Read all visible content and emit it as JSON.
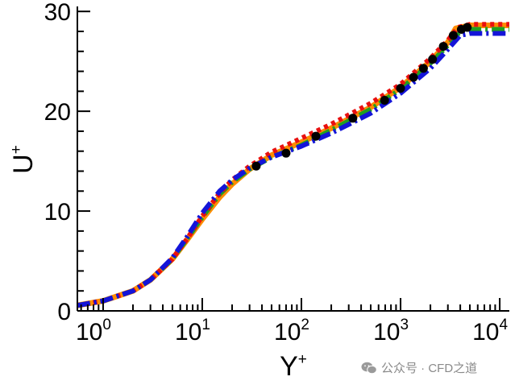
{
  "chart_data": {
    "type": "line",
    "title": "",
    "xlabel": {
      "base": "Y",
      "sup": "+"
    },
    "ylabel": {
      "base": "U",
      "sup": "+"
    },
    "xscale": "log",
    "xlim": [
      0.55,
      12500
    ],
    "ylim": [
      0,
      30.5
    ],
    "xticks": [
      {
        "base": "10",
        "exp": "0",
        "value": 1
      },
      {
        "base": "10",
        "exp": "1",
        "value": 10
      },
      {
        "base": "10",
        "exp": "2",
        "value": 100
      },
      {
        "base": "10",
        "exp": "3",
        "value": 1000
      },
      {
        "base": "10",
        "exp": "4",
        "value": 10000
      }
    ],
    "yticks": [
      {
        "label": "0",
        "value": 0
      },
      {
        "label": "10",
        "value": 10
      },
      {
        "label": "20",
        "value": 20
      },
      {
        "label": "30",
        "value": 30
      }
    ],
    "grid": false,
    "legend": "none",
    "series": [
      {
        "color": "#ff8c00",
        "style": "solid",
        "x": [
          0.55,
          1,
          2,
          3,
          5,
          7,
          10,
          15,
          20,
          30,
          50,
          100,
          200,
          500,
          1000,
          2000,
          3000,
          3600,
          5000,
          8000,
          12500
        ],
        "y": [
          0.55,
          1.0,
          2.0,
          3.1,
          5.2,
          7.1,
          9.2,
          11.4,
          12.7,
          14.2,
          15.6,
          16.9,
          18.3,
          20.4,
          22.4,
          25.0,
          26.9,
          28.3,
          28.6,
          28.6,
          28.6
        ]
      },
      {
        "color": "#20a020",
        "style": "dashdot",
        "x": [
          0.55,
          1,
          2,
          3,
          5,
          7,
          10,
          15,
          20,
          30,
          50,
          100,
          200,
          500,
          1000,
          2000,
          3000,
          4000,
          5000,
          8000,
          12500
        ],
        "y": [
          0.55,
          1.0,
          2.0,
          3.1,
          5.2,
          7.2,
          9.4,
          11.7,
          12.9,
          14.2,
          15.4,
          16.6,
          18.1,
          20.2,
          22.2,
          24.8,
          26.6,
          28.0,
          28.2,
          28.2,
          28.2
        ]
      },
      {
        "color": "#e81010",
        "style": "dotted",
        "x": [
          0.55,
          1,
          2,
          3,
          5,
          7,
          10,
          15,
          20,
          30,
          50,
          100,
          200,
          500,
          1000,
          2000,
          3000,
          3800,
          5000,
          8000,
          12500
        ],
        "y": [
          0.55,
          1.0,
          2.0,
          3.1,
          5.2,
          7.2,
          9.5,
          11.8,
          13.1,
          14.5,
          15.9,
          17.3,
          18.7,
          20.8,
          22.7,
          25.3,
          27.1,
          28.4,
          28.7,
          28.7,
          28.7
        ]
      },
      {
        "color": "#1414d8",
        "style": "dashdot",
        "x": [
          0.55,
          1,
          2,
          3,
          5,
          7,
          10,
          15,
          20,
          30,
          50,
          100,
          200,
          500,
          1000,
          2000,
          3000,
          4000,
          5000,
          8000,
          12500
        ],
        "y": [
          0.55,
          1.0,
          2.0,
          3.1,
          5.3,
          7.4,
          9.8,
          12.0,
          13.1,
          14.3,
          15.4,
          16.5,
          17.8,
          19.8,
          21.8,
          24.3,
          26.2,
          27.6,
          27.8,
          27.8,
          27.8
        ]
      }
    ],
    "markers": {
      "color": "#000000",
      "x": [
        35,
        70,
        140,
        330,
        690,
        1000,
        1350,
        1700,
        2100,
        2700,
        3400,
        4100,
        4700
      ],
      "y": [
        14.5,
        15.8,
        17.5,
        19.3,
        21.1,
        22.3,
        23.4,
        24.3,
        25.2,
        26.5,
        27.6,
        28.2,
        28.4
      ]
    }
  },
  "watermark": {
    "text": "公众号 · CFD之道",
    "icon": "wechat-icon"
  }
}
